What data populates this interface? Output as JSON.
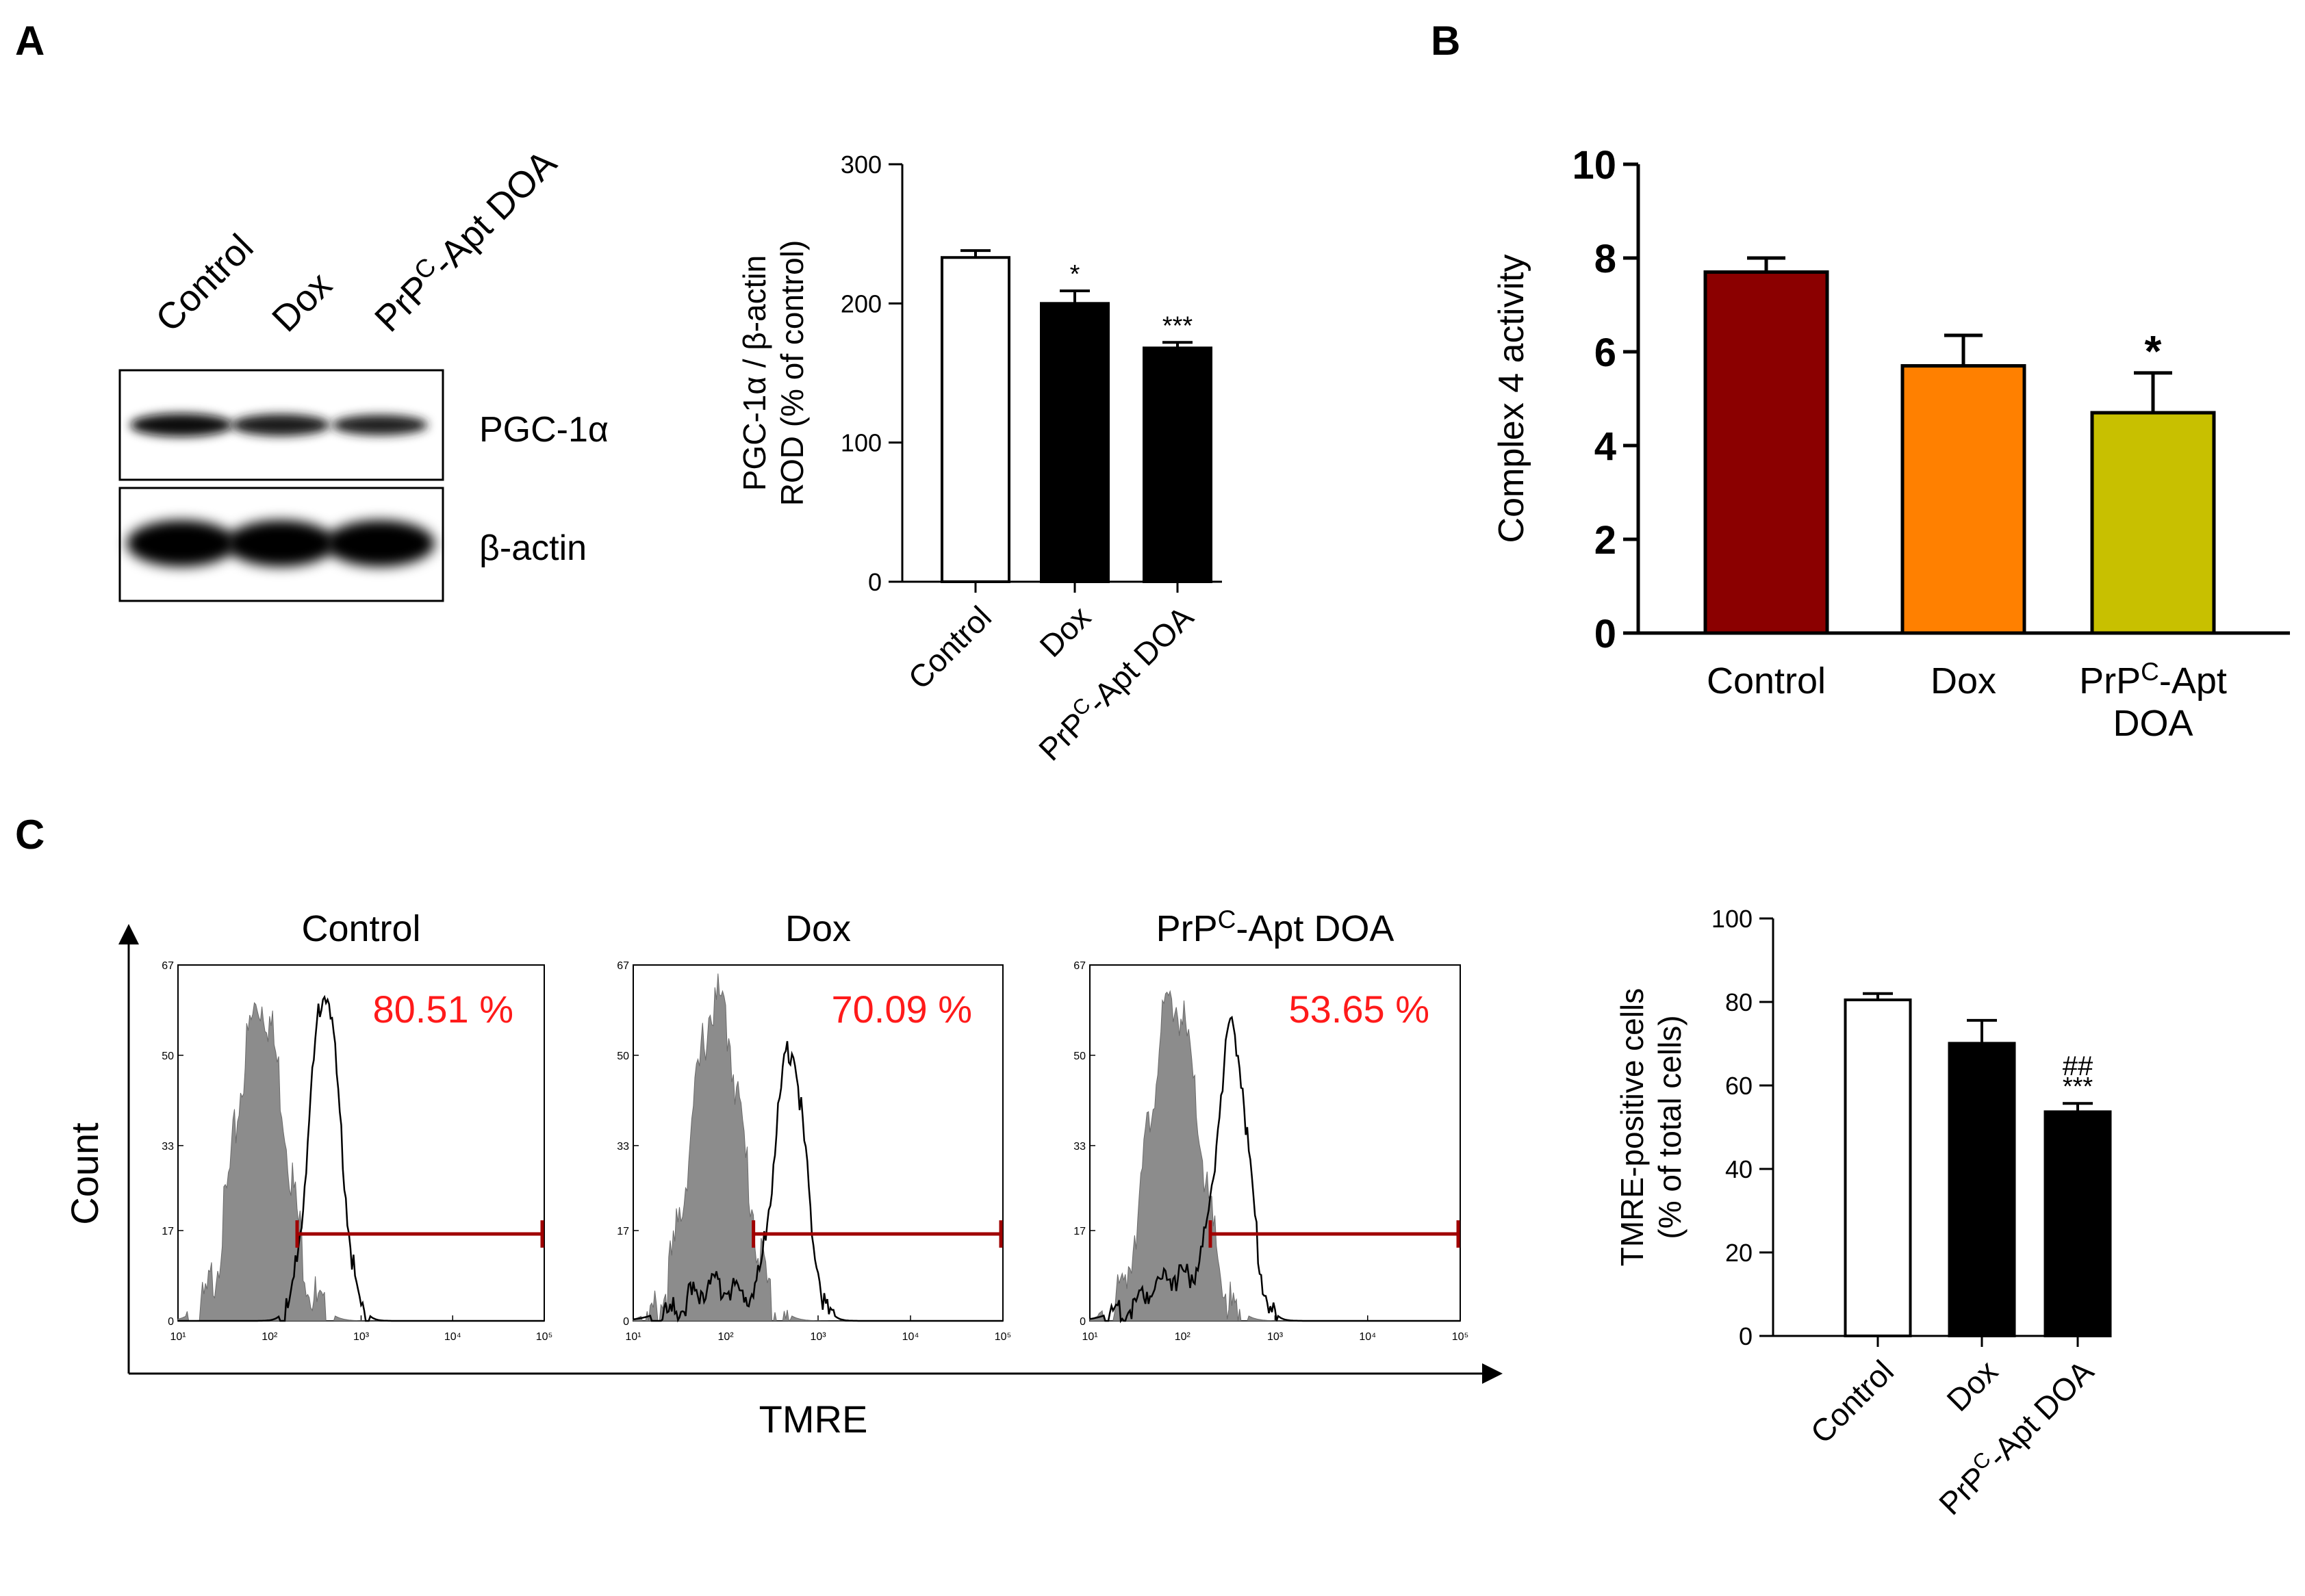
{
  "panels": {
    "a": {
      "label": "A"
    },
    "b": {
      "label": "B"
    },
    "c": {
      "label": "C"
    }
  },
  "blot": {
    "lanes": [
      "Control",
      "Dox",
      "PrPC-Apt DOA"
    ],
    "bands": [
      "PGC-1α",
      "β-actin"
    ]
  },
  "chart_data": [
    {
      "id": "A",
      "type": "bar",
      "title": "",
      "categories": [
        "Control",
        "Dox",
        "PrPC-Apt DOA"
      ],
      "values": [
        233,
        200,
        168
      ],
      "errors": [
        5,
        9,
        4
      ],
      "significance": [
        "",
        "*",
        "***"
      ],
      "ylabel_lines": [
        "PGC-1α / β-actin",
        "ROD (% of control)"
      ],
      "xlabel": "",
      "ylim": [
        0,
        300
      ],
      "yticks": [
        0,
        100,
        200,
        300
      ],
      "colors": [
        "#ffffff",
        "#000000",
        "#000000"
      ]
    },
    {
      "id": "B",
      "type": "bar",
      "title": "",
      "categories": [
        "Control",
        "Dox",
        "PrPC-Apt DOA"
      ],
      "category_lines": [
        [
          "Control"
        ],
        [
          "Dox"
        ],
        [
          "PrPC-Apt",
          "DOA"
        ]
      ],
      "values": [
        7.7,
        5.7,
        4.7
      ],
      "errors": [
        0.3,
        0.65,
        0.85
      ],
      "significance": [
        "",
        "",
        "*"
      ],
      "ylabel": "Complex 4 activity",
      "xlabel": "",
      "ylim": [
        0,
        10
      ],
      "yticks": [
        0,
        2,
        4,
        6,
        8,
        10
      ],
      "colors": [
        "#8b0000",
        "#ff8000",
        "#c8c000"
      ]
    },
    {
      "id": "C-flow",
      "type": "area",
      "xlabel": "TMRE",
      "ylabel": "Count",
      "xscale": "log",
      "xlim": [
        10,
        100000
      ],
      "xticks": [
        "10¹",
        "10²",
        "10³",
        "10⁴",
        "10⁵"
      ],
      "ylim": [
        0,
        67
      ],
      "yticks": [
        0,
        17,
        33,
        50,
        67
      ],
      "panels": [
        {
          "title": "Control",
          "percent": "80.51 %",
          "gate": [
            200,
            100000
          ],
          "control_peak": [
            80,
            63
          ],
          "tmre_peak": [
            400,
            64
          ]
        },
        {
          "title": "Dox",
          "percent": "70.09 %",
          "gate": [
            200,
            100000
          ],
          "control_peak": [
            80,
            63
          ],
          "tmre_peak": [
            500,
            52
          ]
        },
        {
          "title": "PrPC-Apt DOA",
          "percent": "53.65 %",
          "gate": [
            200,
            100000
          ],
          "control_peak": [
            80,
            63
          ],
          "tmre_peak": [
            350,
            54
          ]
        }
      ]
    },
    {
      "id": "C-bar",
      "type": "bar",
      "title": "",
      "categories": [
        "Control",
        "Dox",
        "PrPC-Apt DOA"
      ],
      "values": [
        80.5,
        70.1,
        53.7
      ],
      "errors": [
        1.5,
        5.5,
        2
      ],
      "significance": [
        "",
        "",
        "***"
      ],
      "significance2": [
        "",
        "",
        "##"
      ],
      "ylabel_lines": [
        "TMRE-positive cells",
        "(% of total cells)"
      ],
      "xlabel": "",
      "ylim": [
        0,
        100
      ],
      "yticks": [
        0,
        20,
        40,
        60,
        80,
        100
      ],
      "colors": [
        "#ffffff",
        "#000000",
        "#000000"
      ]
    }
  ]
}
